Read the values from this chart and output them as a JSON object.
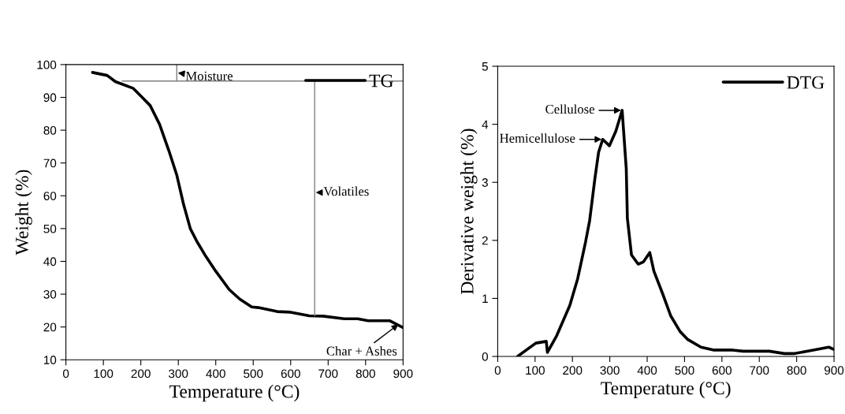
{
  "chart_data": [
    {
      "type": "line",
      "xlabel": "Temperature (°C)",
      "ylabel": "Weight (%)",
      "xlim": [
        0,
        900
      ],
      "ylim": [
        10,
        100
      ],
      "xticks": [
        0,
        100,
        200,
        300,
        400,
        500,
        600,
        700,
        800,
        900
      ],
      "yticks": [
        10,
        20,
        30,
        40,
        50,
        60,
        70,
        80,
        90,
        100
      ],
      "grid": false,
      "legend": "top right",
      "series": [
        {
          "name": "TG",
          "color": "#000000",
          "x": [
            71,
            110,
            132,
            179,
            200,
            225,
            250,
            275,
            296,
            314,
            332,
            350,
            371,
            400,
            436,
            464,
            496,
            514,
            564,
            600,
            650,
            686,
            743,
            779,
            807,
            864,
            900
          ],
          "values": [
            97.6,
            96.7,
            94.8,
            92.8,
            90.4,
            87.5,
            81.8,
            73.7,
            66.3,
            57.4,
            50,
            46,
            42,
            37,
            31.4,
            28.5,
            26.1,
            25.9,
            24.7,
            24.5,
            23.4,
            23.3,
            22.5,
            22.5,
            21.9,
            21.9,
            19.8
          ]
        },
        {
          "color": "#808080",
          "x": [
            150,
            900
          ],
          "values": [
            95,
            95
          ]
        },
        {
          "color": "#808080",
          "x": [
            296,
            296
          ],
          "values": [
            95,
            100
          ]
        },
        {
          "color": "#808080",
          "x": [
            664,
            664
          ],
          "values": [
            95,
            23.4
          ]
        }
      ],
      "annotations": [
        {
          "text": "Moisture",
          "x": 296,
          "y": 97.5
        },
        {
          "text": "Volatiles",
          "x": 664,
          "y": 61
        },
        {
          "text": "Char + Ashes",
          "x": 890,
          "y": 21
        }
      ]
    },
    {
      "type": "line",
      "xlabel": "Temperature (°C)",
      "ylabel": "Derivative weight (%)",
      "xlim": [
        0,
        900
      ],
      "ylim": [
        0,
        5
      ],
      "xticks": [
        0,
        100,
        200,
        300,
        400,
        500,
        600,
        700,
        800,
        900
      ],
      "yticks": [
        0,
        1,
        2,
        3,
        4,
        5
      ],
      "grid": false,
      "legend": "top right",
      "series": [
        {
          "name": "DTG",
          "color": "#000000",
          "x": [
            53,
            102,
            130,
            133,
            158,
            193,
            214,
            235,
            246,
            260,
            270,
            281,
            299,
            316,
            333,
            344,
            347,
            358,
            376,
            390,
            407,
            418,
            442,
            463,
            488,
            509,
            544,
            579,
            629,
            657,
            727,
            767,
            795,
            844,
            886,
            900
          ],
          "values": [
            0,
            0.23,
            0.26,
            0.07,
            0.36,
            0.88,
            1.34,
            1.97,
            2.34,
            3.06,
            3.52,
            3.74,
            3.63,
            3.88,
            4.24,
            3.24,
            2.38,
            1.75,
            1.59,
            1.63,
            1.79,
            1.47,
            1.07,
            0.7,
            0.43,
            0.29,
            0.16,
            0.11,
            0.11,
            0.09,
            0.09,
            0.05,
            0.05,
            0.11,
            0.16,
            0.12
          ]
        }
      ],
      "annotations": [
        {
          "text": "Cellulose",
          "x": 333,
          "y": 4.24
        },
        {
          "text": "Hemicellulose",
          "x": 281,
          "y": 3.74
        }
      ]
    }
  ]
}
